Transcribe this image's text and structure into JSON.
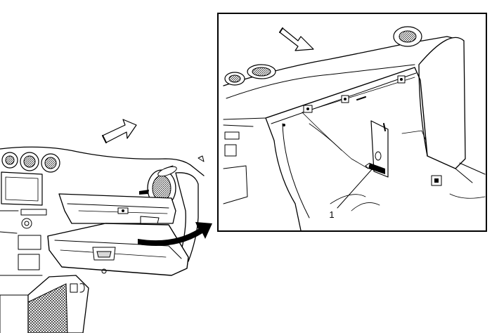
{
  "callouts": [
    {
      "label": "1"
    }
  ]
}
